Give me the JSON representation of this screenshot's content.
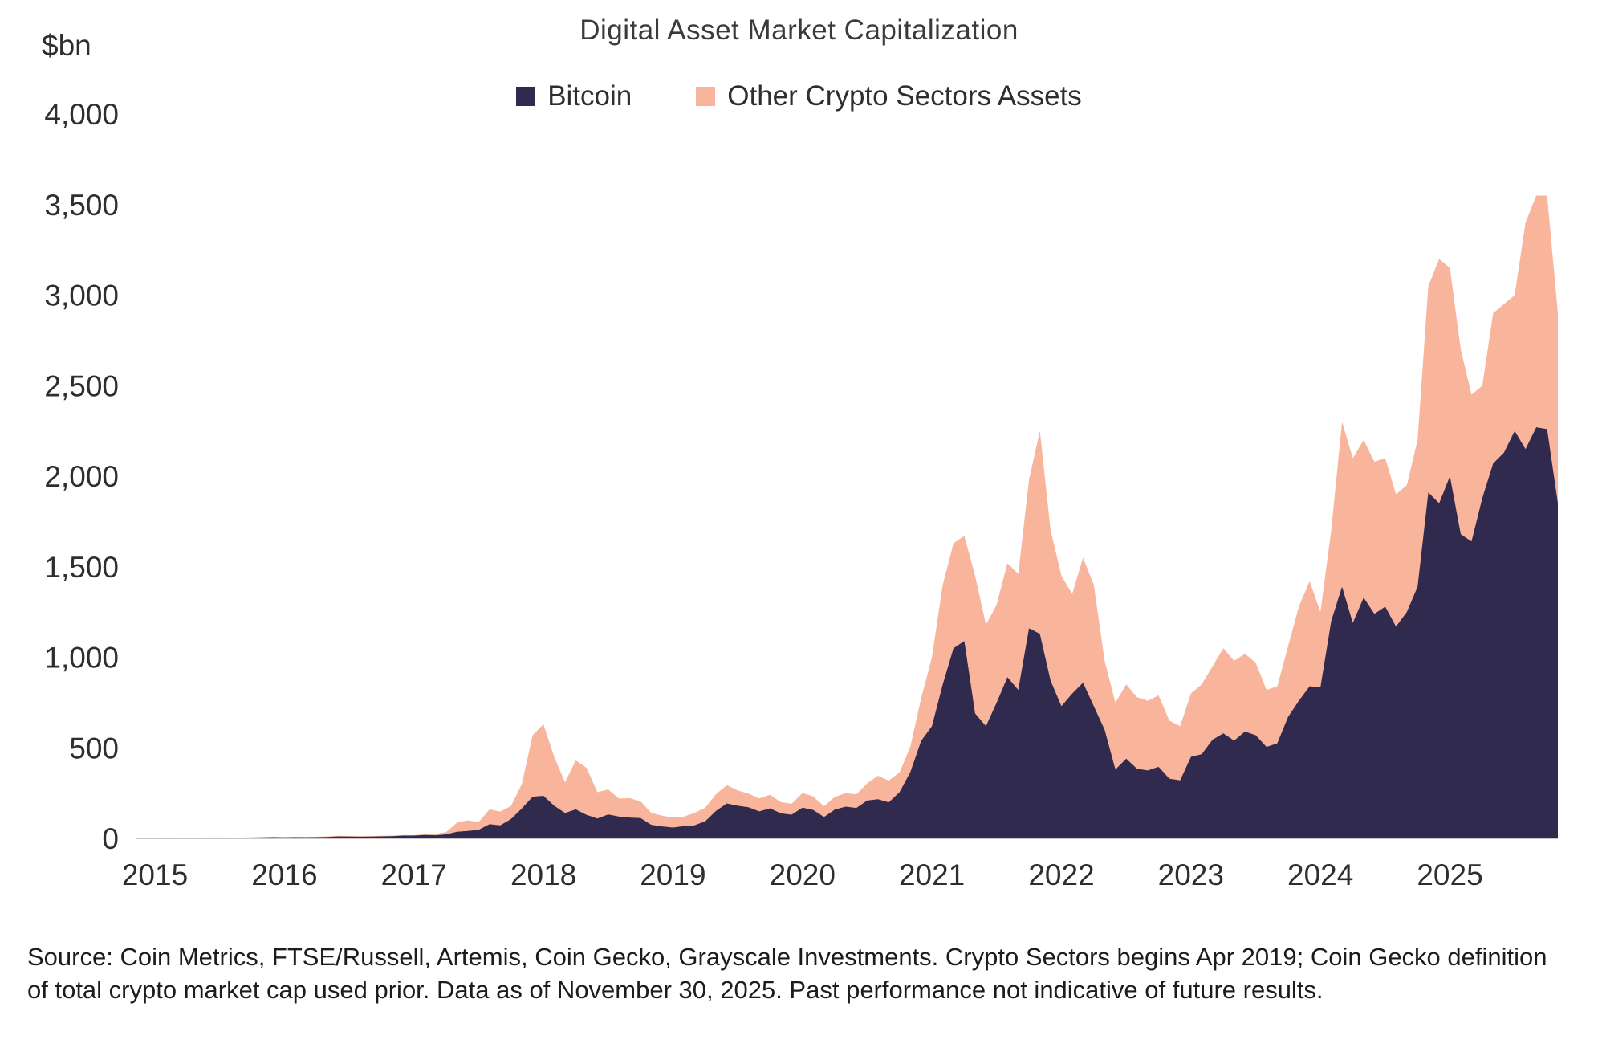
{
  "header": {
    "title": "Digital Asset Market Capitalization",
    "unit_label": "$bn"
  },
  "footer": {
    "source": "Source: Coin Metrics, FTSE/Russell, Artemis, Coin Gecko, Grayscale Investments. Crypto Sectors begins Apr 2019; Coin Gecko definition of total crypto market cap used prior. Data as of November 30, 2025. Past performance not indicative of future results."
  },
  "chart_data": {
    "type": "area",
    "stacked": true,
    "title": "Digital Asset Market Capitalization",
    "unit_label": "$bn",
    "xlabel": "",
    "ylabel": "$bn",
    "frequency": "monthly",
    "x_start": "2015-01",
    "x_end": "2025-11",
    "ylim": [
      0,
      4000
    ],
    "yticks": [
      0,
      500,
      1000,
      1500,
      2000,
      2500,
      3000,
      3500,
      4000
    ],
    "xticks": [
      "2015",
      "2016",
      "2017",
      "2018",
      "2019",
      "2020",
      "2021",
      "2022",
      "2023",
      "2024",
      "2025"
    ],
    "grid": false,
    "legend_position": "top",
    "axis_color": "#c8c8c8",
    "text_color": "#2e2e2e",
    "series": [
      {
        "name": "Bitcoin",
        "color": "#302a4e",
        "values": [
          3,
          4,
          3.5,
          3.3,
          3.3,
          3.8,
          4,
          3.3,
          3.4,
          4.5,
          5.3,
          6.5,
          5.7,
          6.6,
          6.3,
          6.8,
          8.2,
          10.5,
          9.7,
          9.1,
          9.7,
          11,
          11.8,
          15.5,
          15.5,
          19,
          17.5,
          22,
          37,
          41,
          47,
          78,
          72,
          107,
          165,
          230,
          235,
          180,
          140,
          160,
          130,
          110,
          132,
          120,
          115,
          112,
          75,
          66,
          60,
          68,
          72,
          95,
          152,
          193,
          180,
          172,
          149,
          166,
          138,
          131,
          170,
          157,
          118,
          159,
          175,
          168,
          209,
          216,
          199,
          255,
          366,
          539,
          620,
          850,
          1050,
          1090,
          690,
          620,
          750,
          890,
          820,
          1160,
          1130,
          870,
          730,
          800,
          860,
          730,
          600,
          380,
          440,
          385,
          375,
          395,
          330,
          320,
          450,
          465,
          545,
          580,
          540,
          590,
          570,
          505,
          525,
          670,
          760,
          840,
          835,
          1200,
          1390,
          1190,
          1330,
          1240,
          1280,
          1170,
          1250,
          1390,
          1910,
          1850,
          2000,
          1680,
          1640,
          1880,
          2070,
          2130,
          2250,
          2150,
          2270,
          2260,
          1850
        ]
      },
      {
        "name": "Other Crypto Sectors Assets",
        "color": "#f9b49c",
        "values": [
          1,
          1,
          1,
          1,
          1,
          1,
          1,
          1,
          1,
          1.5,
          1.5,
          1.5,
          1.5,
          1.5,
          1.5,
          2,
          3,
          4,
          3.5,
          3,
          3,
          3.5,
          3.5,
          2.5,
          2.5,
          3,
          7,
          13,
          50,
          59,
          43,
          82,
          76,
          72,
          135,
          340,
          395,
          270,
          170,
          270,
          260,
          145,
          138,
          100,
          107,
          92,
          65,
          59,
          55,
          52,
          68,
          75,
          93,
          100,
          85,
          75,
          72,
          75,
          62,
          60,
          80,
          75,
          60,
          70,
          75,
          75,
          95,
          130,
          120,
          110,
          140,
          235,
          380,
          550,
          580,
          580,
          760,
          560,
          540,
          630,
          640,
          820,
          1120,
          830,
          720,
          550,
          690,
          670,
          380,
          370,
          410,
          395,
          385,
          395,
          320,
          300,
          350,
          385,
          405,
          470,
          440,
          430,
          400,
          315,
          315,
          390,
          520,
          580,
          415,
          500,
          910,
          910,
          870,
          840,
          820,
          730,
          700,
          810,
          1140,
          1350,
          1150,
          1020,
          810,
          620,
          830,
          820,
          750,
          1250,
          1280,
          1290,
          1050
        ]
      }
    ]
  }
}
